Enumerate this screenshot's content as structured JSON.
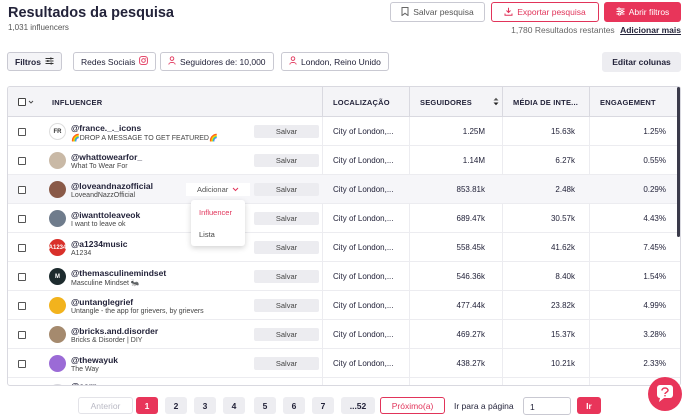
{
  "header": {
    "title": "Resultados da pesquisa",
    "subtitle": "1,031 influencers",
    "save_search": "Salvar pesquisa",
    "export_search": "Exportar pesquisa",
    "open_filters": "Abrir filtros",
    "remaining_count": "1,780",
    "remaining_label": "Resultados restantes",
    "add_more": "Adicionar mais"
  },
  "filters": {
    "filters_button": "Filtros",
    "chips": [
      "Redes Sociais",
      "Seguidores de: 10,000",
      "London, Reino Unido"
    ],
    "edit_columns": "Editar colunas"
  },
  "table": {
    "columns": [
      "INFLUENCER",
      "LOCALIZAÇÃO",
      "SEGUIDORES",
      "MÉDIA DE INTE...",
      "ENGAGEMENT"
    ],
    "save_label": "Salvar",
    "rows": [
      {
        "handle": "@france._._icons",
        "sub": "🌈DROP A MESSAGE TO GET FEATURED🌈",
        "location": "City of London,...",
        "followers": "1.25M",
        "avg": "15.63k",
        "engagement": "1.25%",
        "avatar_color": "#ffffff",
        "avatar_text": "FR"
      },
      {
        "handle": "@whattowearfor_",
        "sub": "What To Wear For",
        "location": "City of London,...",
        "followers": "1.14M",
        "avg": "6.27k",
        "engagement": "0.55%",
        "avatar_color": "#c9b9a6",
        "avatar_text": ""
      },
      {
        "handle": "@loveandnazofficial",
        "sub": "LoveandNazzOfficial",
        "location": "City of London,...",
        "followers": "853.81k",
        "avg": "2.48k",
        "engagement": "0.29%",
        "avatar_color": "#8a5a48",
        "avatar_text": ""
      },
      {
        "handle": "@iwanttoleaveok",
        "sub": "I want to leave ok",
        "location": "City of London,...",
        "followers": "689.47k",
        "avg": "30.57k",
        "engagement": "4.43%",
        "avatar_color": "#6f7c8c",
        "avatar_text": ""
      },
      {
        "handle": "@a1234music",
        "sub": "A1234",
        "location": "City of London,...",
        "followers": "558.45k",
        "avg": "41.62k",
        "engagement": "7.45%",
        "avatar_color": "#d9302a",
        "avatar_text": "A1234"
      },
      {
        "handle": "@themasculinemindset",
        "sub": "Masculine Mindset 🐜",
        "location": "City of London,...",
        "followers": "546.36k",
        "avg": "8.40k",
        "engagement": "1.54%",
        "avatar_color": "#1d2b2e",
        "avatar_text": "M"
      },
      {
        "handle": "@untanglegrief",
        "sub": "Untangle - the app for grievers, by grievers",
        "location": "City of London,...",
        "followers": "477.44k",
        "avg": "23.82k",
        "engagement": "4.99%",
        "avatar_color": "#f2b31d",
        "avatar_text": ""
      },
      {
        "handle": "@bricks.and.disorder",
        "sub": "Bricks & Disorder | DIY",
        "location": "City of London,...",
        "followers": "469.27k",
        "avg": "15.37k",
        "engagement": "3.28%",
        "avatar_color": "#a58a6e",
        "avatar_text": ""
      },
      {
        "handle": "@thewayuk",
        "sub": "The Way",
        "location": "City of London,...",
        "followers": "438.27k",
        "avg": "10.21k",
        "engagement": "2.33%",
        "avatar_color": "#9b6bd6",
        "avatar_text": ""
      },
      {
        "handle": "@earn",
        "sub": "",
        "location": "",
        "followers": "",
        "avg": "",
        "engagement": "",
        "avatar_color": "#d8d8de",
        "avatar_text": ""
      }
    ]
  },
  "add_dropdown": {
    "label": "Adicionar",
    "options": [
      "Influencer",
      "Lista"
    ]
  },
  "pagination": {
    "previous": "Anterior",
    "pages": [
      "1",
      "2",
      "3",
      "4",
      "5",
      "6",
      "7",
      "...52"
    ],
    "next": "Próximo(a)",
    "goto_label": "Ir para a página",
    "goto_value": "1",
    "go_button": "Ir"
  },
  "colors": {
    "accent": "#e8355a",
    "text": "#23233a",
    "header_bg": "#f4f4f7"
  }
}
